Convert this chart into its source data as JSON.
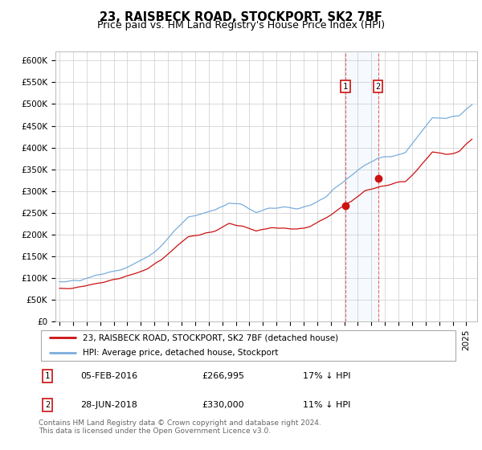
{
  "title": "23, RAISBECK ROAD, STOCKPORT, SK2 7BF",
  "subtitle": "Price paid vs. HM Land Registry's House Price Index (HPI)",
  "ylim": [
    0,
    620000
  ],
  "yticks": [
    0,
    50000,
    100000,
    150000,
    200000,
    250000,
    300000,
    350000,
    400000,
    450000,
    500000,
    550000,
    600000
  ],
  "ytick_labels": [
    "£0",
    "£50K",
    "£100K",
    "£150K",
    "£200K",
    "£250K",
    "£300K",
    "£350K",
    "£400K",
    "£450K",
    "£500K",
    "£550K",
    "£600K"
  ],
  "hpi_color": "#7aaddc",
  "price_color": "#cc1111",
  "background_color": "#ffffff",
  "grid_color": "#cccccc",
  "title_fontsize": 10.5,
  "subtitle_fontsize": 9,
  "tick_fontsize": 7.5,
  "transaction1": {
    "date": "05-FEB-2016",
    "price": 266995,
    "label": "1",
    "year_idx": 253
  },
  "transaction2": {
    "date": "28-JUN-2018",
    "price": 330000,
    "label": "2",
    "year_idx": 282
  },
  "legend1": "23, RAISBECK ROAD, STOCKPORT, SK2 7BF (detached house)",
  "legend2": "HPI: Average price, detached house, Stockport",
  "footer": "Contains HM Land Registry data © Crown copyright and database right 2024.\nThis data is licensed under the Open Government Licence v3.0.",
  "transaction1_pct": "17%",
  "transaction2_pct": "11%"
}
